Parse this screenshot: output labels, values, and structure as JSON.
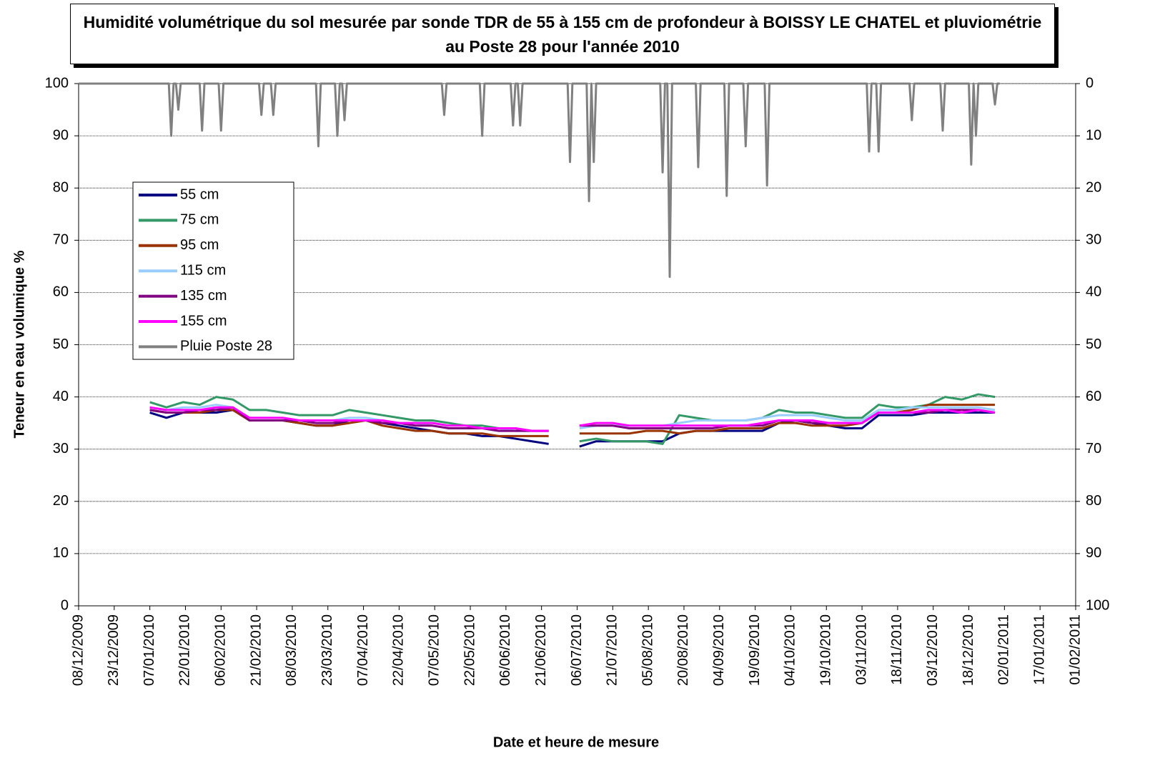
{
  "chart_data": {
    "type": "line",
    "title": "Humidité volumétrique du sol mesurée par sonde TDR de 55 à 155 cm de profondeur à BOISSY LE CHATEL et pluviométrie au Poste 28 pour l'année 2010",
    "x_label": "Date et heure de mesure",
    "y_label": "Teneur en eau volumique %",
    "xlim": [
      "2009-12-08",
      "2011-02-01"
    ],
    "xticks": [
      {
        "value": "2009-12-08",
        "label": "08/12/2009"
      },
      {
        "value": "2009-12-23",
        "label": "23/12/2009"
      },
      {
        "value": "2010-01-07",
        "label": "07/01/2010"
      },
      {
        "value": "2010-01-22",
        "label": "22/01/2010"
      },
      {
        "value": "2010-02-06",
        "label": "06/02/2010"
      },
      {
        "value": "2010-02-21",
        "label": "21/02/2010"
      },
      {
        "value": "2010-03-08",
        "label": "08/03/2010"
      },
      {
        "value": "2010-03-23",
        "label": "23/03/2010"
      },
      {
        "value": "2010-04-07",
        "label": "07/04/2010"
      },
      {
        "value": "2010-04-22",
        "label": "22/04/2010"
      },
      {
        "value": "2010-05-07",
        "label": "07/05/2010"
      },
      {
        "value": "2010-05-22",
        "label": "22/05/2010"
      },
      {
        "value": "2010-06-06",
        "label": "06/06/2010"
      },
      {
        "value": "2010-06-21",
        "label": "21/06/2010"
      },
      {
        "value": "2010-07-06",
        "label": "06/07/2010"
      },
      {
        "value": "2010-07-21",
        "label": "21/07/2010"
      },
      {
        "value": "2010-08-05",
        "label": "05/08/2010"
      },
      {
        "value": "2010-08-20",
        "label": "20/08/2010"
      },
      {
        "value": "2010-09-04",
        "label": "04/09/2010"
      },
      {
        "value": "2010-09-19",
        "label": "19/09/2010"
      },
      {
        "value": "2010-10-04",
        "label": "04/10/2010"
      },
      {
        "value": "2010-10-19",
        "label": "19/10/2010"
      },
      {
        "value": "2010-11-03",
        "label": "03/11/2010"
      },
      {
        "value": "2010-11-18",
        "label": "18/11/2010"
      },
      {
        "value": "2010-12-03",
        "label": "03/12/2010"
      },
      {
        "value": "2010-12-18",
        "label": "18/12/2010"
      },
      {
        "value": "2011-01-02",
        "label": "02/01/2011"
      },
      {
        "value": "2011-01-17",
        "label": "17/01/2011"
      },
      {
        "value": "2011-02-01",
        "label": "01/02/2011"
      }
    ],
    "ylim": [
      0,
      100
    ],
    "yticks": [
      0,
      10,
      20,
      30,
      40,
      50,
      60,
      70,
      80,
      90,
      100
    ],
    "y2lim": [
      100,
      0
    ],
    "y2ticks": [
      0,
      10,
      20,
      30,
      40,
      50,
      60,
      70,
      80,
      90,
      100
    ],
    "grid": true,
    "x": [
      "2010-01-07",
      "2010-01-14",
      "2010-01-21",
      "2010-01-28",
      "2010-02-04",
      "2010-02-11",
      "2010-02-18",
      "2010-02-25",
      "2010-03-04",
      "2010-03-11",
      "2010-03-18",
      "2010-03-25",
      "2010-04-01",
      "2010-04-08",
      "2010-04-15",
      "2010-04-22",
      "2010-04-29",
      "2010-05-06",
      "2010-05-13",
      "2010-05-20",
      "2010-05-27",
      "2010-06-03",
      "2010-06-10",
      "2010-06-17",
      "2010-06-24",
      "2010-06-30",
      "2010-07-07",
      "2010-07-14",
      "2010-07-21",
      "2010-07-28",
      "2010-08-04",
      "2010-08-11",
      "2010-08-18",
      "2010-08-25",
      "2010-09-01",
      "2010-09-08",
      "2010-09-15",
      "2010-09-22",
      "2010-09-29",
      "2010-10-06",
      "2010-10-13",
      "2010-10-20",
      "2010-10-27",
      "2010-11-03",
      "2010-11-10",
      "2010-11-17",
      "2010-11-24",
      "2010-12-01",
      "2010-12-08",
      "2010-12-15",
      "2010-12-22",
      "2010-12-29"
    ],
    "series": [
      {
        "name": "55 cm",
        "color": "#000080",
        "values": [
          37,
          36,
          37,
          37,
          37,
          37.5,
          35.5,
          35.5,
          35.5,
          35,
          34.5,
          34.5,
          35.5,
          35.5,
          35,
          34.5,
          34,
          33.5,
          33,
          33,
          32.5,
          32.5,
          32,
          31.5,
          31,
          null,
          30.5,
          31.5,
          31.5,
          31.5,
          31.5,
          31.5,
          33,
          33.5,
          33.5,
          33.5,
          33.5,
          33.5,
          35,
          35.5,
          35,
          34.5,
          34,
          34,
          36.5,
          36.5,
          36.5,
          37,
          37,
          37,
          37,
          37
        ]
      },
      {
        "name": "75 cm",
        "color": "#339966",
        "values": [
          39,
          38,
          39,
          38.5,
          40,
          39.5,
          37.5,
          37.5,
          37,
          36.5,
          36.5,
          36.5,
          37.5,
          37,
          36.5,
          36,
          35.5,
          35.5,
          35,
          34.5,
          34.5,
          34,
          34,
          33.5,
          33.5,
          null,
          31.5,
          32,
          31.5,
          31.5,
          31.5,
          31,
          36.5,
          36,
          35.5,
          35.5,
          35.5,
          36,
          37.5,
          37,
          37,
          36.5,
          36,
          36,
          38.5,
          38,
          38,
          38.5,
          40,
          39.5,
          40.5,
          40
        ]
      },
      {
        "name": "95 cm",
        "color": "#993300",
        "values": [
          37.5,
          37,
          37,
          37,
          37.5,
          37.5,
          35.5,
          35.5,
          35.5,
          35,
          34.5,
          34.5,
          35,
          35.5,
          34.5,
          34,
          33.5,
          33.5,
          33,
          33,
          33,
          32.5,
          32.5,
          32.5,
          32.5,
          null,
          33,
          33,
          33,
          33,
          33.5,
          33.5,
          33,
          33.5,
          33.5,
          34,
          34,
          34,
          35,
          35,
          34.5,
          34.5,
          34.5,
          35,
          37,
          37,
          37.5,
          38.5,
          38.5,
          38.5,
          38.5,
          38.5
        ]
      },
      {
        "name": "115 cm",
        "color": "#99ccff",
        "values": [
          38,
          37.5,
          38,
          38,
          38.5,
          38,
          36,
          36,
          36,
          35.5,
          35.5,
          35.5,
          36,
          36,
          35.5,
          35,
          35,
          34.5,
          34,
          34,
          34,
          34,
          33.5,
          33.5,
          33.5,
          null,
          34,
          34.5,
          34.5,
          34.5,
          34.5,
          34.5,
          35,
          35.5,
          35.5,
          35.5,
          35.5,
          36,
          36.5,
          36.5,
          36.5,
          36,
          35.5,
          35.5,
          37.5,
          37.5,
          38,
          38,
          38,
          38,
          38,
          37.5
        ]
      },
      {
        "name": "135 cm",
        "color": "#800080",
        "values": [
          37.5,
          37,
          37,
          37.5,
          37.5,
          38,
          35.5,
          35.5,
          35.5,
          35.5,
          35,
          35,
          35.5,
          35.5,
          35,
          35,
          34.5,
          34.5,
          34,
          34,
          34,
          33.5,
          33.5,
          33.5,
          33.5,
          null,
          34.5,
          34.5,
          34.5,
          34,
          34,
          34,
          34,
          34,
          34,
          34.5,
          34.5,
          34.5,
          35.5,
          35.5,
          35,
          35,
          35,
          35,
          37,
          37,
          37,
          37,
          37.5,
          37.5,
          37.5,
          37
        ]
      },
      {
        "name": "155 cm",
        "color": "#ff00ff",
        "values": [
          38,
          37.5,
          37.5,
          37.5,
          38,
          38,
          36,
          36,
          36,
          35.5,
          35.5,
          35.5,
          35.5,
          35.5,
          35.5,
          35,
          35,
          35,
          34.5,
          34.5,
          34,
          34,
          34,
          33.5,
          33.5,
          null,
          34.5,
          35,
          35,
          34.5,
          34.5,
          34.5,
          34.5,
          34.5,
          34.5,
          34.5,
          34.5,
          35,
          35.5,
          35.5,
          35.5,
          35,
          35,
          35,
          37,
          37,
          37,
          37.5,
          37.5,
          37,
          37.5,
          37
        ]
      },
      {
        "name": "Pluie Poste 28",
        "color": "#808080",
        "axis": "y2",
        "x": [
          "2009-12-08",
          "2010-01-15",
          "2010-01-16",
          "2010-01-17",
          "2010-01-18",
          "2010-01-19",
          "2010-01-20",
          "2010-01-28",
          "2010-01-29",
          "2010-01-30",
          "2010-02-05",
          "2010-02-06",
          "2010-02-07",
          "2010-02-22",
          "2010-02-23",
          "2010-02-24",
          "2010-02-27",
          "2010-02-28",
          "2010-03-01",
          "2010-03-18",
          "2010-03-19",
          "2010-03-20",
          "2010-03-26",
          "2010-03-27",
          "2010-03-28",
          "2010-03-29",
          "2010-03-30",
          "2010-03-31",
          "2010-05-10",
          "2010-05-11",
          "2010-05-12",
          "2010-05-26",
          "2010-05-27",
          "2010-05-28",
          "2010-06-08",
          "2010-06-09",
          "2010-06-10",
          "2010-06-11",
          "2010-06-12",
          "2010-06-13",
          "2010-07-02",
          "2010-07-03",
          "2010-07-04",
          "2010-07-10",
          "2010-07-11",
          "2010-07-12",
          "2010-07-13",
          "2010-07-14",
          "2010-08-10",
          "2010-08-11",
          "2010-08-12",
          "2010-08-13",
          "2010-08-14",
          "2010-08-15",
          "2010-08-25",
          "2010-08-26",
          "2010-08-27",
          "2010-09-06",
          "2010-09-07",
          "2010-09-08",
          "2010-09-14",
          "2010-09-15",
          "2010-09-16",
          "2010-09-23",
          "2010-09-24",
          "2010-09-25",
          "2010-11-05",
          "2010-11-06",
          "2010-11-07",
          "2010-11-09",
          "2010-11-10",
          "2010-11-11",
          "2010-11-23",
          "2010-11-24",
          "2010-11-25",
          "2010-12-06",
          "2010-12-07",
          "2010-12-08",
          "2010-12-18",
          "2010-12-19",
          "2010-12-20",
          "2010-12-21",
          "2010-12-22",
          "2010-12-28",
          "2010-12-29",
          "2010-12-30",
          "2010-12-31"
        ],
        "values": [
          0,
          0,
          10,
          0,
          0,
          5,
          0,
          0,
          9,
          0,
          0,
          9,
          0,
          0,
          6,
          0,
          0,
          6,
          0,
          0,
          12,
          0,
          0,
          10,
          0,
          0,
          7,
          0,
          0,
          6,
          0,
          0,
          10,
          0,
          0,
          8,
          0,
          0,
          8,
          0,
          0,
          15,
          0,
          0,
          22.5,
          0,
          15,
          0,
          0,
          17,
          0,
          0,
          37,
          0,
          0,
          16,
          0,
          0,
          21.5,
          0,
          0,
          12,
          0,
          0,
          19.5,
          0,
          0,
          13,
          0,
          0,
          13,
          0,
          0,
          7,
          0,
          0,
          9,
          0,
          0,
          15.5,
          0,
          10,
          0,
          0,
          4,
          0,
          0
        ]
      }
    ]
  }
}
